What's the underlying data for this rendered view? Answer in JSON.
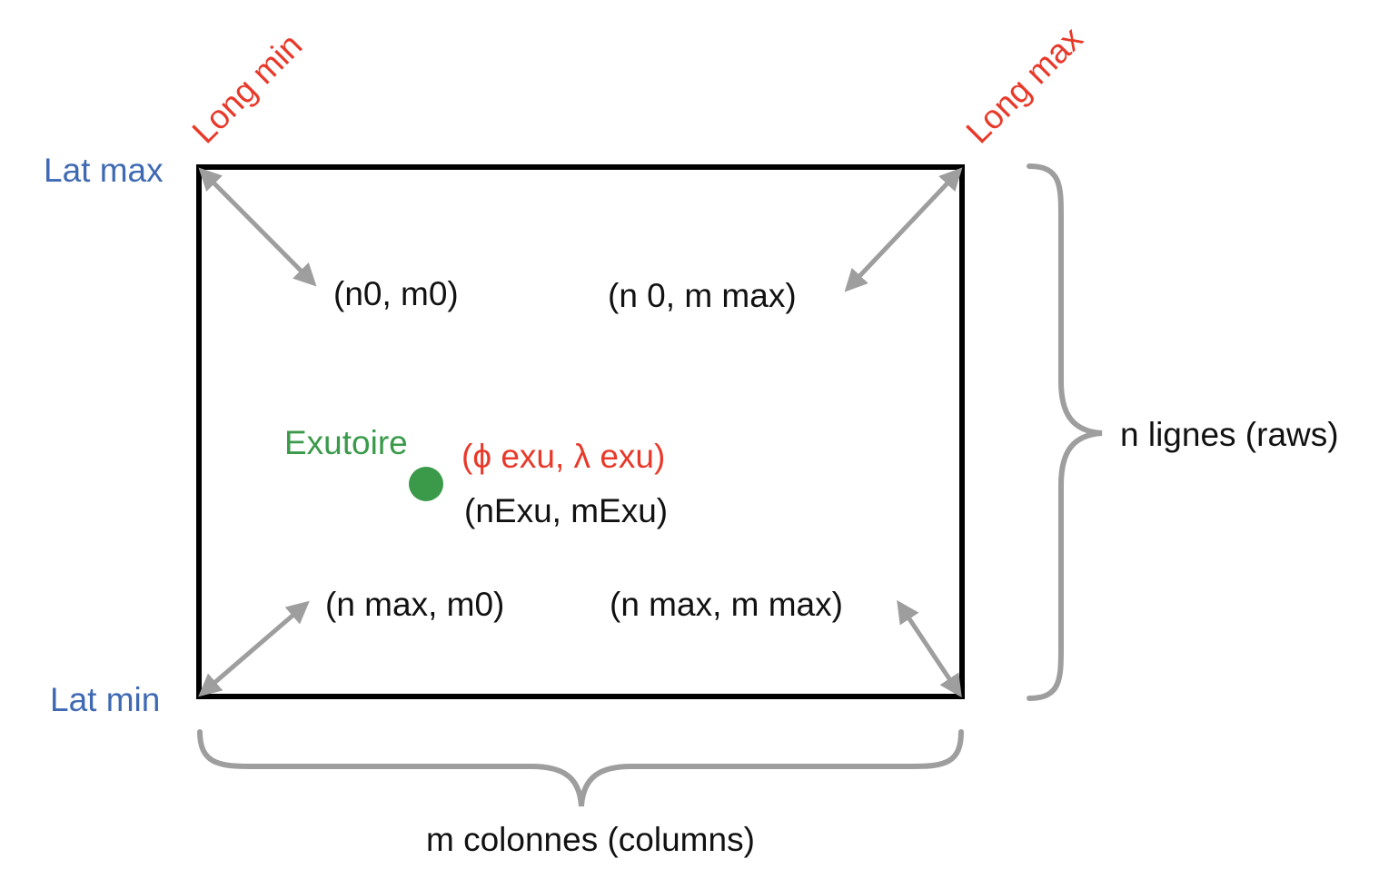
{
  "colors": {
    "latitude_label": "#3f6ab3",
    "longitude_label": "#e8392a",
    "outlet": "#3a9a4a",
    "coordinates": "#e8392a",
    "text": "#111111",
    "arrows_and_braces": "#9e9e9e",
    "frame": "#000000"
  },
  "labels": {
    "lat_max": "Lat max",
    "lat_min": "Lat min",
    "long_min": "Long min",
    "long_max": "Long max",
    "rows_brace": "n lignes (raws)",
    "columns_brace": "m colonnes (columns)"
  },
  "corners": {
    "top_left": "(n0, m0)",
    "top_right": "(n 0, m max)",
    "bottom_left": "(n max, m0)",
    "bottom_right": "(n max, m max)"
  },
  "outlet": {
    "name": "Exutoire",
    "geo_coords": "(ϕ exu, λ exu)",
    "grid_index": "(nExu, mExu)"
  }
}
